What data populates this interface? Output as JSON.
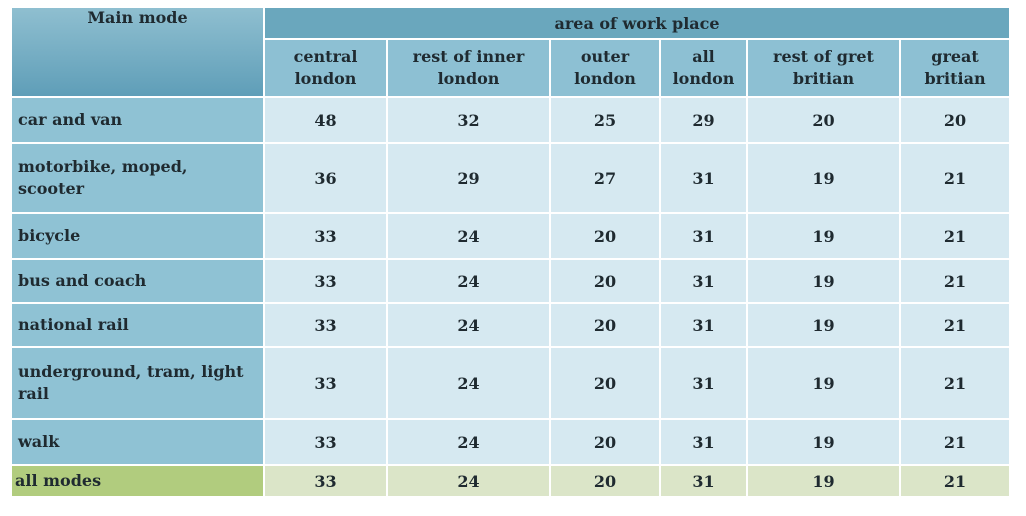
{
  "chart_data": {
    "type": "table",
    "corner_label": "Main mode",
    "group_header": "area of work place",
    "columns": [
      "central\nlondon",
      "rest of inner\nlondon",
      "outer\nlondon",
      "all\nlondon",
      "rest of gret\nbritian",
      "great\nbritian"
    ],
    "rows": [
      {
        "label": "car and van",
        "values": [
          48,
          32,
          25,
          29,
          20,
          20
        ]
      },
      {
        "label": "motorbike, moped,\nscooter",
        "values": [
          36,
          29,
          27,
          31,
          19,
          21
        ]
      },
      {
        "label": "bicycle",
        "values": [
          33,
          24,
          20,
          31,
          19,
          21
        ]
      },
      {
        "label": "bus and coach",
        "values": [
          33,
          24,
          20,
          31,
          19,
          21
        ]
      },
      {
        "label": "national rail",
        "values": [
          33,
          24,
          20,
          31,
          19,
          21
        ]
      },
      {
        "label": "underground, tram, light\nrail",
        "values": [
          33,
          24,
          20,
          31,
          19,
          21
        ]
      },
      {
        "label": "walk",
        "values": [
          33,
          24,
          20,
          31,
          19,
          21
        ]
      }
    ],
    "total": {
      "label": "all modes",
      "values": [
        33,
        24,
        20,
        31,
        19,
        21
      ]
    }
  },
  "colors": {
    "header_dark": "#6aa7bd",
    "header": "#8dc0d3",
    "row_label": "#8fc2d4",
    "cell": "#d6e9f1",
    "total_label": "#b1cc7e",
    "total_cell": "#dbe5c8"
  }
}
